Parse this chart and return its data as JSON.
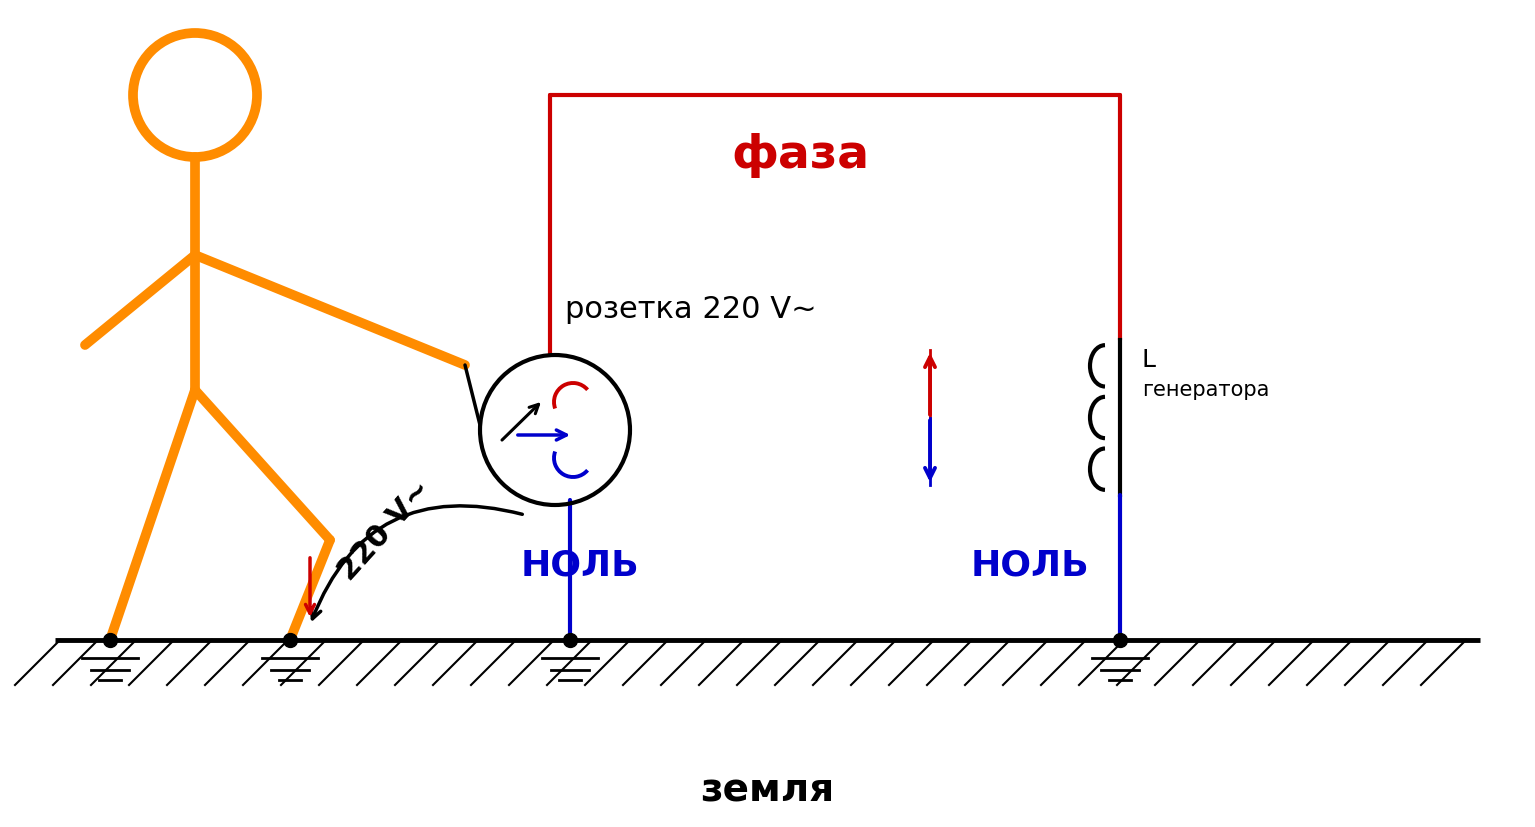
{
  "bg_color": "#ffffff",
  "orange_color": "#FF8C00",
  "red_color": "#CC0000",
  "blue_color": "#0000CC",
  "black_color": "#000000",
  "text_faza": "фаза",
  "text_nol1": "НОЛЬ",
  "text_nol2": "НОЛЬ",
  "text_zemlya": "земля",
  "text_rozetka": "розетка 220 V~",
  "text_220v": "220 V~",
  "text_L": "L",
  "text_generator": "генератора",
  "figsize": [
    15.35,
    8.27
  ],
  "dpi": 100,
  "xlim": [
    0,
    15.35
  ],
  "ylim": [
    0,
    8.27
  ]
}
